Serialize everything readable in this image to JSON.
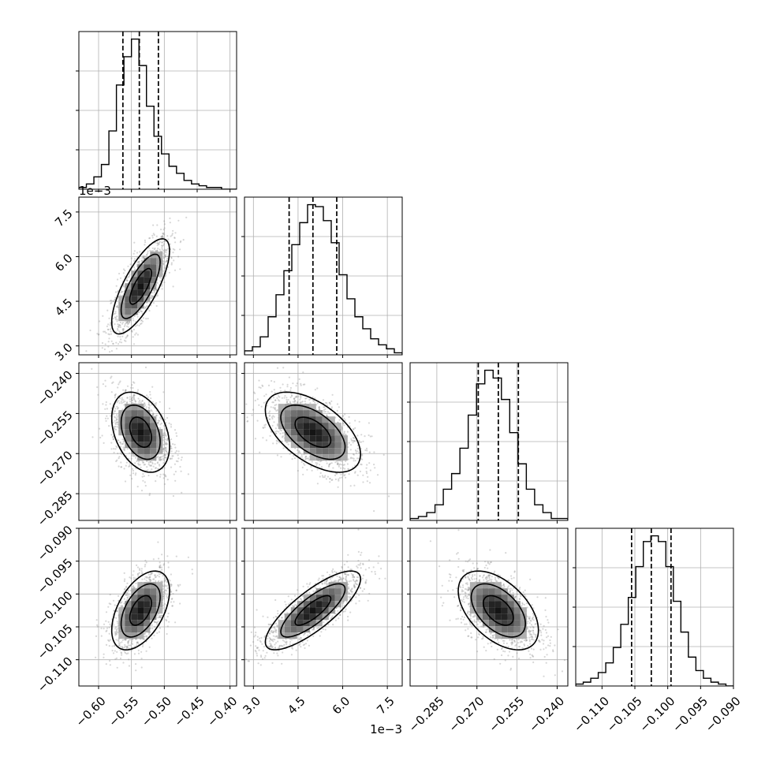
{
  "chart_data": {
    "type": "corner",
    "grid": true,
    "offset_labels": {
      "y_param1": "1e−3",
      "x_param1": "1e−3"
    },
    "parameters": [
      {
        "name": "",
        "range": [
          -0.63,
          -0.39
        ],
        "ticks": [
          {
            "v": -0.6,
            "label": "−0.60"
          },
          {
            "v": -0.55,
            "label": "−0.55"
          },
          {
            "v": -0.5,
            "label": "−0.50"
          },
          {
            "v": -0.45,
            "label": "−0.45"
          },
          {
            "v": -0.4,
            "label": "−0.40"
          }
        ],
        "quantiles": [
          -0.563,
          -0.538,
          -0.509
        ],
        "mean": -0.536,
        "sd": 0.022,
        "hist_counts": [
          1,
          3,
          7,
          14,
          33,
          59,
          75,
          85,
          70,
          47,
          30,
          20,
          13,
          9,
          5,
          3,
          2,
          1,
          1,
          0,
          0
        ]
      },
      {
        "name": "",
        "range": [
          2.7,
          8.0
        ],
        "ticks": [
          {
            "v": 3.0,
            "label": "3.0"
          },
          {
            "v": 4.5,
            "label": "4.5"
          },
          {
            "v": 6.0,
            "label": "6.0"
          },
          {
            "v": 7.5,
            "label": "7.5"
          }
        ],
        "quantiles": [
          4.2,
          5.0,
          5.8
        ],
        "mean": 5.0,
        "sd": 0.8,
        "hist_counts": [
          2,
          4,
          9,
          19,
          30,
          42,
          55,
          66,
          75,
          74,
          67,
          56,
          40,
          28,
          19,
          13,
          8,
          5,
          3,
          1
        ]
      },
      {
        "name": "",
        "range": [
          -0.295,
          -0.236
        ],
        "ticks": [
          {
            "v": -0.285,
            "label": "−0.285"
          },
          {
            "v": -0.27,
            "label": "−0.270"
          },
          {
            "v": -0.255,
            "label": "−0.255"
          },
          {
            "v": -0.24,
            "label": "−0.240"
          }
        ],
        "quantiles": [
          -0.2695,
          -0.262,
          -0.2545
        ],
        "mean": -0.262,
        "sd": 0.0075,
        "hist_counts": [
          1,
          2,
          4,
          8,
          16,
          24,
          37,
          54,
          70,
          77,
          73,
          62,
          45,
          29,
          16,
          8,
          4,
          1,
          1
        ]
      },
      {
        "name": "",
        "range": [
          -0.114,
          -0.09
        ],
        "ticks": [
          {
            "v": -0.11,
            "label": "−0.110"
          },
          {
            "v": -0.105,
            "label": "−0.105"
          },
          {
            "v": -0.1,
            "label": "−0.100"
          },
          {
            "v": -0.095,
            "label": "−0.095"
          },
          {
            "v": -0.09,
            "label": "−0.090"
          }
        ],
        "quantiles": [
          -0.1055,
          -0.1025,
          -0.0995
        ],
        "mean": -0.1025,
        "sd": 0.003,
        "hist_counts": [
          1,
          2,
          4,
          7,
          12,
          20,
          32,
          46,
          62,
          75,
          78,
          75,
          62,
          44,
          28,
          15,
          8,
          4,
          2,
          1,
          0
        ]
      }
    ],
    "correlations": {
      "1-0": 0.75,
      "2-0": -0.35,
      "2-1": -0.55,
      "3-0": 0.5,
      "3-1": 0.8,
      "3-2": -0.5
    }
  }
}
